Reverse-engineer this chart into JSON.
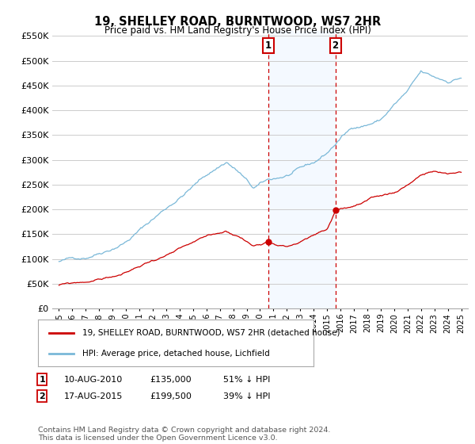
{
  "title": "19, SHELLEY ROAD, BURNTWOOD, WS7 2HR",
  "subtitle": "Price paid vs. HM Land Registry's House Price Index (HPI)",
  "hpi_color": "#7ab8d8",
  "price_color": "#cc0000",
  "vline_color": "#cc0000",
  "vband_color": "#ddeeff",
  "ylim": [
    0,
    560000
  ],
  "yticks": [
    0,
    50000,
    100000,
    150000,
    200000,
    250000,
    300000,
    350000,
    400000,
    450000,
    500000,
    550000
  ],
  "ytick_labels": [
    "£0",
    "£50K",
    "£100K",
    "£150K",
    "£200K",
    "£250K",
    "£300K",
    "£350K",
    "£400K",
    "£450K",
    "£500K",
    "£550K"
  ],
  "sale1_year": 2010.62,
  "sale1_price": 135000,
  "sale1_label": "1",
  "sale2_year": 2015.62,
  "sale2_price": 199500,
  "sale2_label": "2",
  "legend_line1": "19, SHELLEY ROAD, BURNTWOOD, WS7 2HR (detached house)",
  "legend_line2": "HPI: Average price, detached house, Lichfield",
  "footer": "Contains HM Land Registry data © Crown copyright and database right 2024.\nThis data is licensed under the Open Government Licence v3.0.",
  "bg_color": "#ffffff",
  "grid_color": "#cccccc"
}
